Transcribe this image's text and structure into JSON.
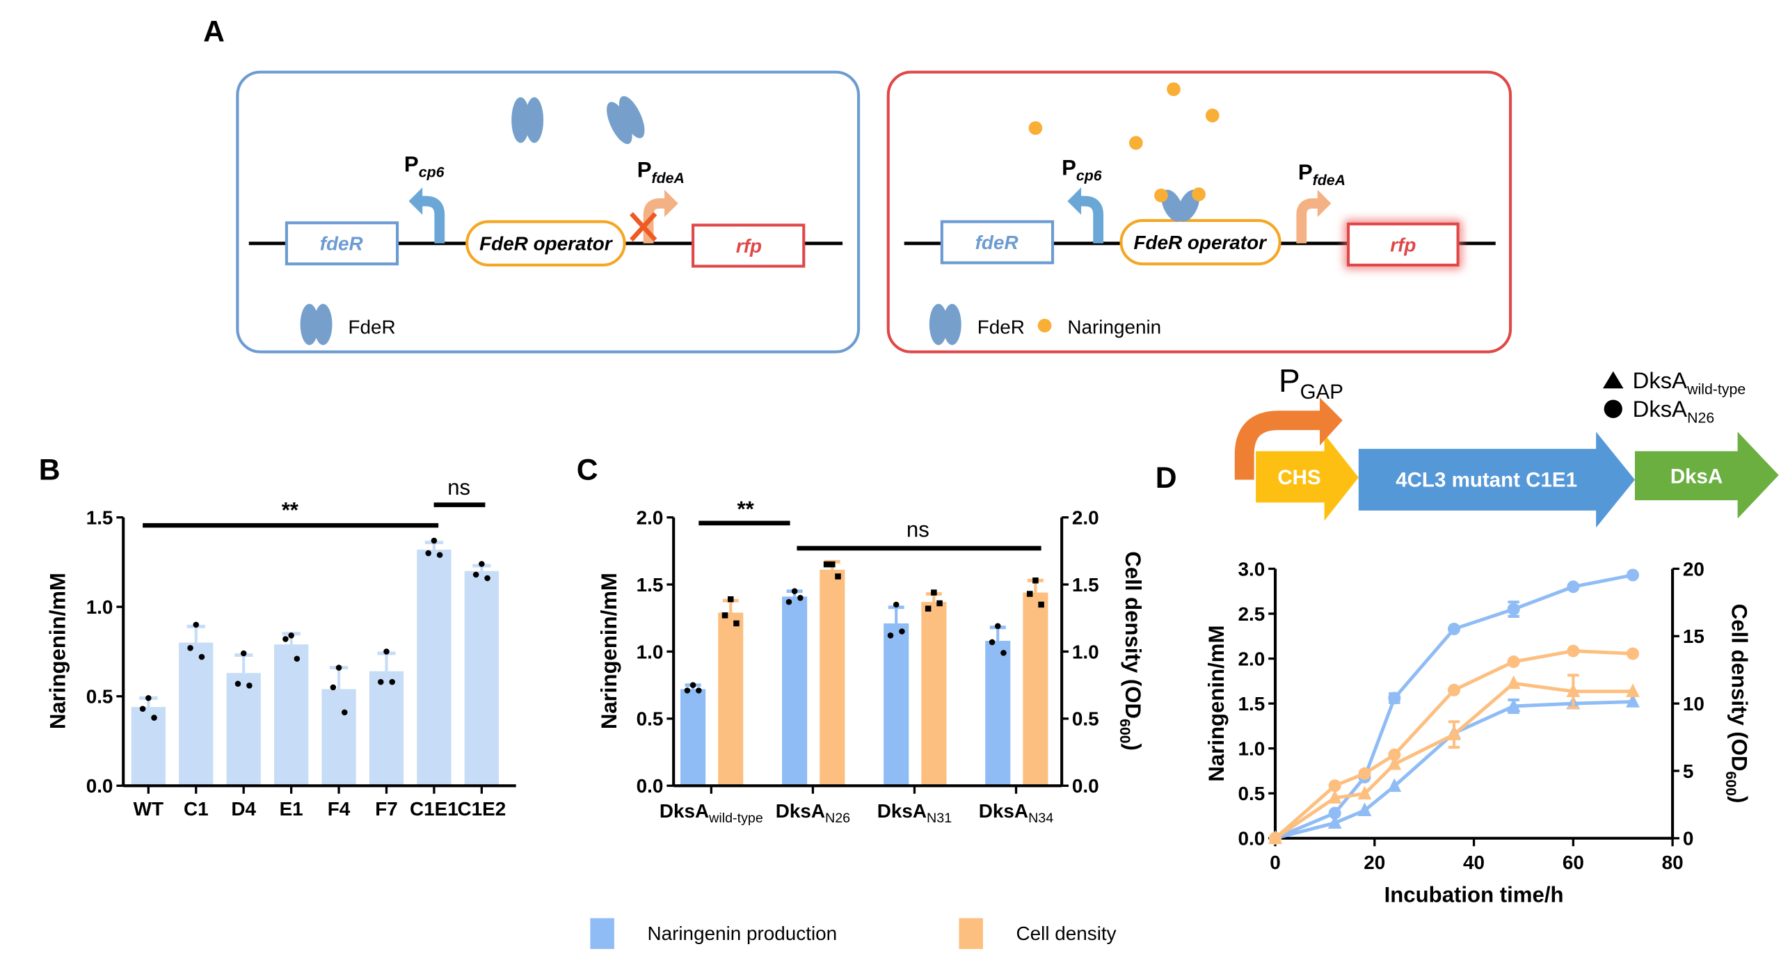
{
  "panels": {
    "A": {
      "label": "A",
      "left": {
        "gene1": "fdeR",
        "operator": "FdeR operator",
        "reporter": "rfp",
        "p1": {
          "base": "P",
          "sub": "cp6"
        },
        "p2": {
          "base": "P",
          "sub": "fdeA"
        },
        "legend_protein": "FdeR"
      },
      "right": {
        "gene1": "fdeR",
        "operator": "FdeR operator",
        "reporter": "rfp",
        "p1": {
          "base": "P",
          "sub": "cp6"
        },
        "p2": {
          "base": "P",
          "sub": "fdeA"
        },
        "legend_protein": "FdeR",
        "legend_ligand": "Naringenin"
      }
    },
    "B": {
      "label": "B"
    },
    "C": {
      "label": "C"
    },
    "D": {
      "label": "D",
      "construct": {
        "promoter": {
          "base": "P",
          "sub": "GAP"
        },
        "genes": [
          "CHS",
          "4CL3 mutant C1E1",
          "DksA"
        ]
      },
      "legend": [
        {
          "marker": "triangle",
          "base": "DksA",
          "sub": "wild-type"
        },
        {
          "marker": "circle",
          "base": "DksA",
          "sub": "N26"
        }
      ]
    }
  },
  "bottom_legend": [
    {
      "label": "Naringenin production",
      "color": "#8fbcf5"
    },
    {
      "label": "Cell density",
      "color": "#fdbf7f"
    }
  ],
  "colors": {
    "blue_box": "#6c9bd2",
    "red_box": "#e04848",
    "operator": "#f5a623",
    "protein": "#769fcc",
    "naringenin": "#f9ae35",
    "bar_b": "#c6dcf7",
    "blue": "#8fbcf5",
    "orange": "#fdbf7f"
  },
  "chart_data": [
    {
      "panel": "B",
      "type": "bar",
      "ylabel": "Naringenin/mM",
      "ylim": [
        0,
        1.5
      ],
      "yticks": [
        "0.0",
        "0.5",
        "1.0",
        "1.5"
      ],
      "categories": [
        "WT",
        "C1",
        "D4",
        "E1",
        "F4",
        "F7",
        "C1E1",
        "C1E2"
      ],
      "values": [
        0.44,
        0.8,
        0.63,
        0.79,
        0.54,
        0.64,
        1.32,
        1.2
      ],
      "error_top": [
        0.49,
        0.89,
        0.73,
        0.85,
        0.66,
        0.74,
        1.36,
        1.23
      ],
      "points": [
        [
          0.49,
          0.43,
          0.38
        ],
        [
          0.9,
          0.77,
          0.72
        ],
        [
          0.74,
          0.57,
          0.56
        ],
        [
          0.84,
          0.82,
          0.71
        ],
        [
          0.66,
          0.55,
          0.41
        ],
        [
          0.75,
          0.58,
          0.58
        ],
        [
          1.37,
          1.3,
          1.29
        ],
        [
          1.24,
          1.18,
          1.16
        ]
      ],
      "annotations": [
        {
          "text": "**",
          "from": "WT",
          "to": "C1E1"
        },
        {
          "text": "ns",
          "from": "C1E1",
          "to": "C1E2"
        }
      ]
    },
    {
      "panel": "C",
      "type": "bar",
      "ylabel": "Naringenin/mM",
      "ylim": [
        0,
        2.0
      ],
      "y2label": {
        "base": "Cell density (OD",
        "sub": "600",
        "end": ")"
      },
      "y2lim": [
        0,
        2.0
      ],
      "yticks": [
        "0.0",
        "0.5",
        "1.0",
        "1.5",
        "2.0"
      ],
      "y2ticks": [
        "0.0",
        "0.5",
        "1.0",
        "1.5",
        "2.0"
      ],
      "categories": [
        {
          "base": "DksA",
          "sub": "wild-type"
        },
        {
          "base": "DksA",
          "sub": "N26"
        },
        {
          "base": "DksA",
          "sub": "N31"
        },
        {
          "base": "DksA",
          "sub": "N34"
        }
      ],
      "series": [
        {
          "name": "Naringenin production",
          "axis": "left",
          "color": "#8fbcf5",
          "values": [
            0.72,
            1.41,
            1.21,
            1.08
          ],
          "error_top": [
            0.75,
            1.45,
            1.33,
            1.18
          ],
          "points": [
            [
              0.75,
              0.71,
              0.71
            ],
            [
              1.45,
              1.37,
              1.4
            ],
            [
              1.35,
              1.12,
              1.15
            ],
            [
              1.19,
              1.07,
              0.99
            ]
          ]
        },
        {
          "name": "Cell density",
          "axis": "right",
          "color": "#fdbf7f",
          "values": [
            1.29,
            1.61,
            1.37,
            1.44
          ],
          "error_top": [
            1.38,
            1.67,
            1.43,
            1.53
          ],
          "points": [
            [
              1.39,
              1.27,
              1.21
            ],
            [
              1.65,
              1.65,
              1.56
            ],
            [
              1.44,
              1.32,
              1.36
            ],
            [
              1.53,
              1.43,
              1.35
            ]
          ]
        }
      ],
      "annotations": [
        {
          "text": "**",
          "from": 0,
          "to": 1
        },
        {
          "text": "ns",
          "from": 1,
          "to": 3
        }
      ]
    },
    {
      "panel": "D",
      "type": "line",
      "xlabel": "Incubation time/h",
      "xlim": [
        0,
        80
      ],
      "xticks": [
        "0",
        "20",
        "40",
        "60",
        "80"
      ],
      "ylabel": "Naringenin/mM",
      "ylim": [
        0,
        3.0
      ],
      "yticks": [
        "0.0",
        "0.5",
        "1.0",
        "1.5",
        "2.0",
        "2.5",
        "3.0"
      ],
      "y2label": {
        "base": "Cell density (OD",
        "sub": "600",
        "end": ")"
      },
      "y2lim": [
        0,
        20
      ],
      "y2ticks": [
        "0",
        "5",
        "10",
        "15",
        "20"
      ],
      "x": [
        0,
        12,
        18,
        24,
        36,
        48,
        60,
        72
      ],
      "series": [
        {
          "strain": "DksA N26",
          "quantity": "Naringenin production",
          "axis": "left",
          "marker": "circle",
          "color": "#8fbcf5",
          "values": [
            0,
            0.28,
            0.68,
            1.56,
            2.33,
            2.55,
            2.8,
            2.93
          ],
          "error": [
            0,
            0,
            0,
            0.05,
            0,
            0.08,
            0,
            0
          ]
        },
        {
          "strain": "DksA wild-type",
          "quantity": "Naringenin production",
          "axis": "left",
          "marker": "triangle",
          "color": "#8fbcf5",
          "values": [
            0,
            0.17,
            0.31,
            0.58,
            1.17,
            1.47,
            1.5,
            1.52
          ],
          "error": [
            0,
            0,
            0,
            0,
            0,
            0.07,
            0,
            0
          ]
        },
        {
          "strain": "DksA N26",
          "quantity": "Cell density",
          "axis": "right",
          "marker": "circle",
          "color": "#fdbf7f",
          "values": [
            0,
            3.9,
            4.8,
            6.2,
            11.0,
            13.1,
            13.9,
            13.7
          ],
          "error": [
            0,
            0,
            0,
            0,
            0,
            0,
            0,
            0
          ]
        },
        {
          "strain": "DksA wild-type",
          "quantity": "Cell density",
          "axis": "right",
          "marker": "triangle",
          "color": "#fdbf7f",
          "values": [
            0,
            3.0,
            3.3,
            5.5,
            7.7,
            11.5,
            10.9,
            10.9
          ],
          "error": [
            0,
            0,
            0,
            0,
            0.95,
            0,
            1.2,
            0
          ]
        }
      ]
    }
  ]
}
